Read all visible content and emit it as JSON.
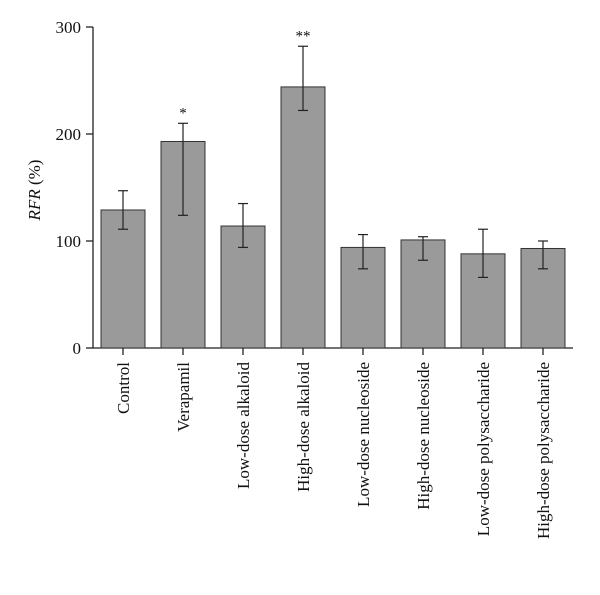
{
  "chart_data": {
    "type": "bar",
    "categories": [
      "Control",
      "Verapamil",
      "Low-dose alkaloid",
      "High-dose alkaloid",
      "Low-dose nucleoside",
      "High-dose nucleoside",
      "Low-dose polysaccharide",
      "High-dose polysaccharide"
    ],
    "values": [
      129,
      193,
      114,
      244,
      94,
      101,
      88,
      93
    ],
    "error_low": [
      111,
      124,
      94,
      222,
      74,
      82,
      66,
      74
    ],
    "error_high": [
      147,
      210,
      135,
      282,
      106,
      104,
      111,
      100
    ],
    "significance": [
      "",
      "*",
      "",
      "**",
      "",
      "",
      "",
      ""
    ],
    "ylabel_italic": "RFR",
    "ylabel_unit": " (%)",
    "ylim": [
      0,
      300
    ],
    "yticks": [
      0,
      100,
      200,
      300
    ],
    "bar_color": "#9a9a9a",
    "grid": false
  }
}
